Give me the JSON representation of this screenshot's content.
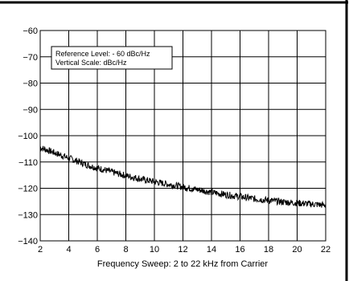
{
  "chart_data": {
    "type": "line",
    "xlabel": "Frequency Sweep: 2 to 22 kHz from Carrier",
    "ylabel": "",
    "xlim": [
      2,
      22
    ],
    "ylim": [
      -140,
      -60
    ],
    "xticks": [
      "2",
      "4",
      "6",
      "8",
      "10",
      "12",
      "14",
      "16",
      "18",
      "20",
      "22"
    ],
    "yticks": [
      "−60",
      "−70",
      "−80",
      "−90",
      "−100",
      "−110",
      "−120",
      "−130",
      "−140"
    ],
    "grid": true,
    "annotation": {
      "line1": "Reference Level: - 60 dBc/Hz",
      "line2": "Vertical Scale: dBc/Hz"
    },
    "series": [
      {
        "x": [
          2,
          2.5,
          3,
          3.5,
          4,
          4.5,
          5,
          5.5,
          6,
          6.5,
          7,
          7.5,
          8,
          8.5,
          9,
          9.5,
          10,
          10.5,
          11,
          11.5,
          12,
          12.5,
          13,
          13.5,
          14,
          14.5,
          15,
          15.5,
          16,
          16.5,
          17,
          17.5,
          18,
          18.5,
          19,
          19.5,
          20,
          20.5,
          21,
          21.5,
          22
        ],
        "values": [
          -104.5,
          -105.5,
          -106.5,
          -107.5,
          -108.5,
          -109.5,
          -110.5,
          -111.5,
          -112.3,
          -113,
          -113.8,
          -114.5,
          -115.2,
          -115.8,
          -116.4,
          -117,
          -117.5,
          -118,
          -118.5,
          -119,
          -119.5,
          -120,
          -120.5,
          -121,
          -121.5,
          -122,
          -122.4,
          -122.8,
          -123.2,
          -123.6,
          -124,
          -124.3,
          -124.6,
          -124.9,
          -125.2,
          -125.4,
          -125.6,
          -125.8,
          -126,
          -126.2,
          -126.5
        ]
      }
    ]
  },
  "colors": {
    "line": "#000000",
    "grid": "#000000",
    "background": "#ffffff"
  }
}
